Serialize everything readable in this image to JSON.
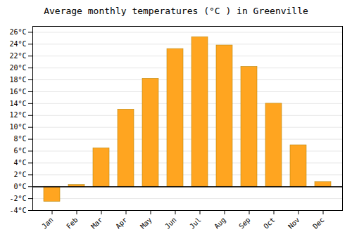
{
  "chart_data": {
    "type": "bar",
    "title": "Average monthly temperatures (°C ) in Greenville",
    "categories": [
      "Jan",
      "Feb",
      "Mar",
      "Apr",
      "May",
      "Jun",
      "Jul",
      "Aug",
      "Sep",
      "Oct",
      "Nov",
      "Dec"
    ],
    "values": [
      -2.5,
      0.3,
      6.5,
      13.0,
      18.2,
      23.2,
      25.2,
      23.8,
      20.2,
      14.0,
      7.0,
      0.8
    ],
    "color": "#FFA520",
    "ylim": [
      -4,
      27
    ],
    "yticks": [
      {
        "value": -4,
        "label": "-4°C"
      },
      {
        "value": -2,
        "label": "-2°C"
      },
      {
        "value": 0,
        "label": "0°C"
      },
      {
        "value": 2,
        "label": "2°C"
      },
      {
        "value": 4,
        "label": "4°C"
      },
      {
        "value": 6,
        "label": "6°C"
      },
      {
        "value": 8,
        "label": "8°C"
      },
      {
        "value": 10,
        "label": "10°C"
      },
      {
        "value": 12,
        "label": "12°C"
      },
      {
        "value": 14,
        "label": "14°C"
      },
      {
        "value": 16,
        "label": "16°C"
      },
      {
        "value": 18,
        "label": "18°C"
      },
      {
        "value": 20,
        "label": "20°C"
      },
      {
        "value": 22,
        "label": "22°C"
      },
      {
        "value": 24,
        "label": "24°C"
      },
      {
        "value": 26,
        "label": "26°C"
      }
    ],
    "grid": true
  }
}
